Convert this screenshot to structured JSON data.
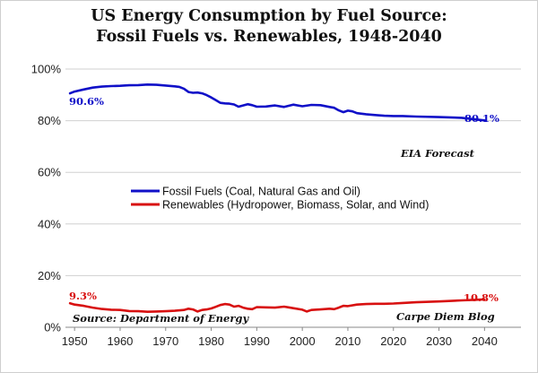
{
  "chart_data": {
    "type": "line",
    "title_line1": "US Energy Consumption by Fuel Source:",
    "title_line2": "Fossil Fuels vs. Renewables, 1948-2040",
    "xlabel": "",
    "ylabel": "",
    "xlim": [
      1948,
      2048
    ],
    "ylim": [
      0,
      100
    ],
    "x_ticks": [
      1950,
      1960,
      1970,
      1980,
      1990,
      2000,
      2010,
      2020,
      2030,
      2040
    ],
    "y_ticks": [
      0,
      20,
      40,
      60,
      80,
      100
    ],
    "y_tick_labels": [
      "0%",
      "20%",
      "40%",
      "60%",
      "80%",
      "100%"
    ],
    "grid": "horizontal",
    "legend_position": "center-left",
    "series": [
      {
        "name": "Fossil Fuels (Coal, Natural Gas and Oil)",
        "color": "#1010c8",
        "x": [
          1949,
          1950,
          1952,
          1954,
          1956,
          1958,
          1960,
          1962,
          1964,
          1966,
          1968,
          1970,
          1972,
          1973,
          1974,
          1975,
          1976,
          1977,
          1978,
          1979,
          1980,
          1981,
          1982,
          1983,
          1984,
          1985,
          1986,
          1987,
          1988,
          1989,
          1990,
          1992,
          1994,
          1996,
          1998,
          2000,
          2002,
          2004,
          2006,
          2007,
          2008,
          2009,
          2010,
          2011,
          2012,
          2014,
          2016,
          2018,
          2020,
          2022,
          2025,
          2030,
          2035,
          2040
        ],
        "values": [
          90.6,
          91.3,
          92.1,
          92.8,
          93.2,
          93.4,
          93.5,
          93.7,
          93.8,
          94.0,
          93.9,
          93.6,
          93.3,
          93.1,
          92.4,
          91.1,
          90.8,
          90.9,
          90.6,
          89.9,
          89.0,
          88.0,
          86.9,
          86.7,
          86.6,
          86.3,
          85.4,
          85.9,
          86.4,
          86.0,
          85.4,
          85.5,
          85.9,
          85.3,
          86.2,
          85.6,
          86.1,
          86.0,
          85.3,
          85.0,
          84.0,
          83.3,
          83.9,
          83.6,
          82.9,
          82.5,
          82.2,
          81.9,
          81.8,
          81.8,
          81.6,
          81.4,
          81.1,
          80.1
        ]
      },
      {
        "name": "Renewables (Hydropower, Biomass, Solar, and Wind)",
        "color": "#d81010",
        "x": [
          1949,
          1950,
          1952,
          1954,
          1956,
          1958,
          1960,
          1962,
          1964,
          1966,
          1968,
          1970,
          1972,
          1974,
          1975,
          1976,
          1977,
          1978,
          1979,
          1980,
          1981,
          1982,
          1983,
          1984,
          1985,
          1986,
          1987,
          1988,
          1989,
          1990,
          1992,
          1994,
          1996,
          1997,
          1998,
          2000,
          2001,
          2002,
          2004,
          2006,
          2007,
          2008,
          2009,
          2010,
          2012,
          2014,
          2016,
          2018,
          2020,
          2022,
          2025,
          2030,
          2035,
          2040
        ],
        "values": [
          9.3,
          8.8,
          8.3,
          7.6,
          7.1,
          6.8,
          6.7,
          6.3,
          6.2,
          6.0,
          6.1,
          6.2,
          6.4,
          6.7,
          7.2,
          6.9,
          6.1,
          6.7,
          6.9,
          7.3,
          7.9,
          8.6,
          9.0,
          8.8,
          8.0,
          8.3,
          7.6,
          7.2,
          7.0,
          7.8,
          7.7,
          7.6,
          8.0,
          7.7,
          7.4,
          6.8,
          6.1,
          6.7,
          6.9,
          7.2,
          7.0,
          7.6,
          8.3,
          8.2,
          8.8,
          9.0,
          9.1,
          9.1,
          9.2,
          9.4,
          9.7,
          10.0,
          10.4,
          10.8
        ]
      }
    ],
    "annotations": {
      "fossil_start": "90.6%",
      "fossil_end": "80.1%",
      "renew_start": "9.3%",
      "renew_end": "10.8%",
      "forecast": "EIA Forecast",
      "source": "Source: Department of Energy",
      "credit": "Carpe Diem Blog"
    }
  }
}
